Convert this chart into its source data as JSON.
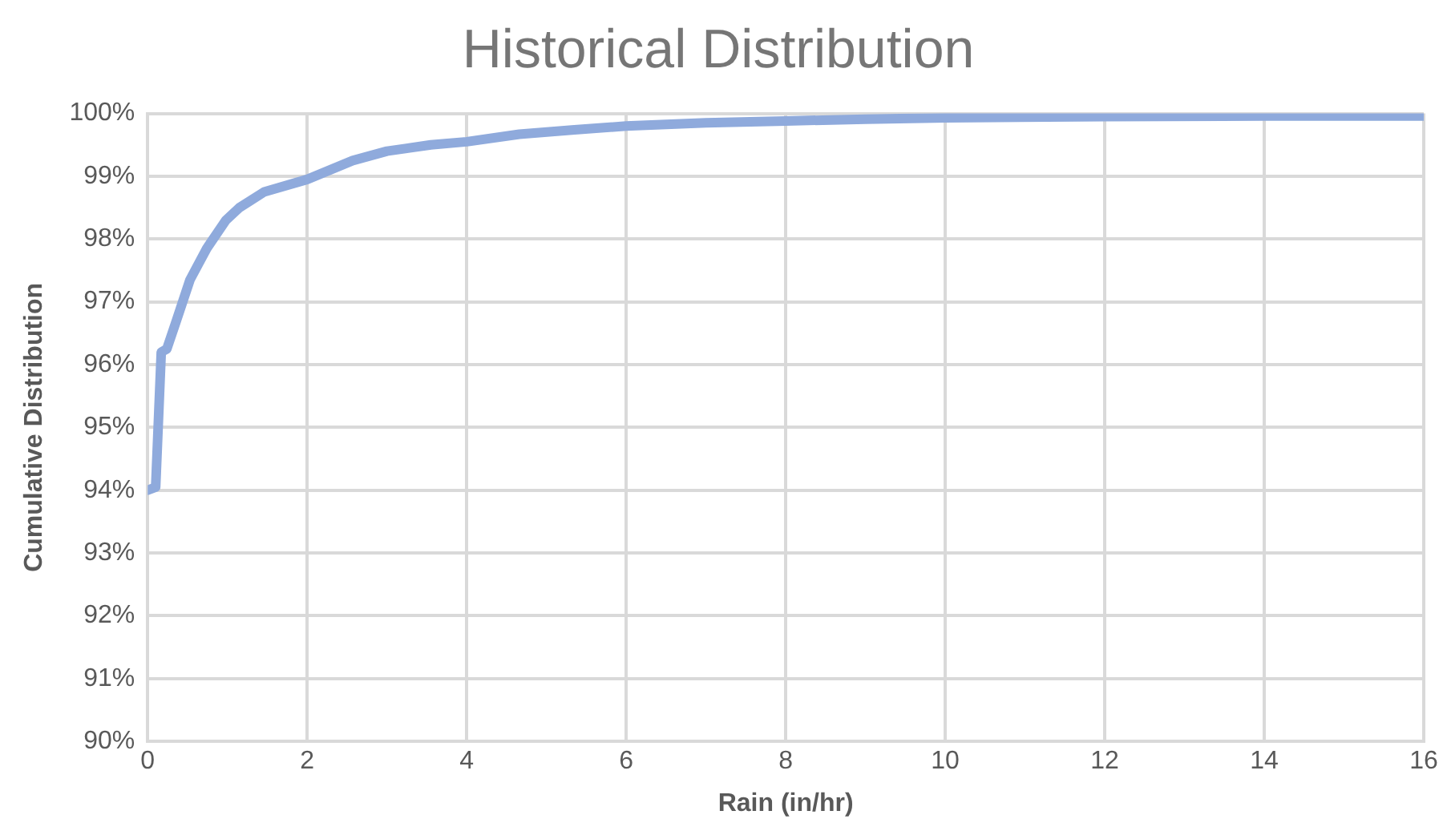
{
  "chart_data": {
    "type": "line",
    "title": "Historical Distribution",
    "xlabel": "Rain (in/hr)",
    "ylabel": "Cumulative Distribution",
    "x": [
      0.0,
      0.1,
      0.17,
      0.24,
      0.36,
      0.53,
      0.74,
      0.98,
      1.15,
      1.46,
      2,
      2.57,
      3,
      3.55,
      4,
      4.66,
      5.35,
      6,
      7,
      8,
      9,
      10,
      12,
      14,
      16
    ],
    "series": [
      {
        "color": "#8faadc",
        "values": [
          94.0,
          94.05,
          96.2,
          96.25,
          96.7,
          97.35,
          97.85,
          98.3,
          98.5,
          98.75,
          98.95,
          99.25,
          99.4,
          99.5,
          99.55,
          99.67,
          99.74,
          99.8,
          99.85,
          99.88,
          99.91,
          99.93,
          99.95,
          99.96,
          99.96
        ]
      }
    ],
    "xlim": [
      0,
      16
    ],
    "xticks": [
      0,
      2,
      4,
      6,
      8,
      10,
      12,
      14,
      16
    ],
    "ylim": [
      90,
      100
    ],
    "yticks": [
      {
        "value": 90,
        "label": "90%"
      },
      {
        "value": 91,
        "label": "91%"
      },
      {
        "value": 92,
        "label": "92%"
      },
      {
        "value": 93,
        "label": "93%"
      },
      {
        "value": 94,
        "label": "94%"
      },
      {
        "value": 95,
        "label": "95%"
      },
      {
        "value": 96,
        "label": "96%"
      },
      {
        "value": 97,
        "label": "97%"
      },
      {
        "value": 98,
        "label": "98%"
      },
      {
        "value": 99,
        "label": "99%"
      },
      {
        "value": 100,
        "label": "100%"
      }
    ],
    "grid": true,
    "legend": false,
    "marker": "none",
    "line_style": "solid"
  }
}
